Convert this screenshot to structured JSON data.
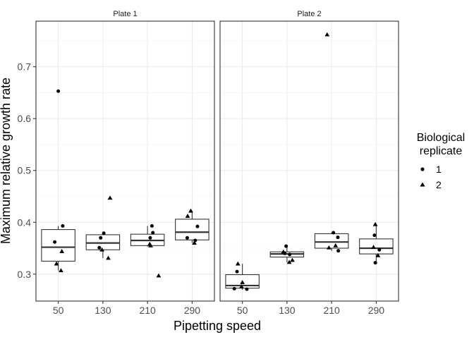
{
  "chart_data": {
    "type": "boxplot",
    "ylabel": "Maximum relative growth rate",
    "xlabel": "Pipetting speed",
    "categories": [
      "50",
      "130",
      "210",
      "290"
    ],
    "ylim": [
      0.248,
      0.788
    ],
    "yticks": [
      0.3,
      0.4,
      0.5,
      0.6,
      0.7
    ],
    "ytick_labels": [
      "0.3",
      "0.4",
      "0.5",
      "0.6",
      "0.7"
    ],
    "grid": true,
    "legend": {
      "title_lines": [
        "Biological",
        "replicate"
      ],
      "entries": [
        {
          "label": "1",
          "shape": "circle"
        },
        {
          "label": "2",
          "shape": "triangle"
        }
      ],
      "position": "right"
    },
    "panels": [
      {
        "name": "Plate 1",
        "boxes": [
          {
            "x": "50",
            "min": 0.307,
            "q1": 0.325,
            "median": 0.352,
            "q3": 0.386,
            "max": 0.393
          },
          {
            "x": "130",
            "min": 0.331,
            "q1": 0.347,
            "median": 0.36,
            "q3": 0.376,
            "max": 0.379
          },
          {
            "x": "210",
            "min": 0.353,
            "q1": 0.355,
            "median": 0.365,
            "q3": 0.377,
            "max": 0.393
          },
          {
            "x": "290",
            "min": 0.36,
            "q1": 0.366,
            "median": 0.381,
            "q3": 0.406,
            "max": 0.422
          }
        ],
        "points": [
          {
            "x": "50",
            "offset": 0.0,
            "y": 0.653,
            "replicate": "1"
          },
          {
            "x": "50",
            "offset": -0.08,
            "y": 0.362,
            "replicate": "1"
          },
          {
            "x": "50",
            "offset": 0.1,
            "y": 0.393,
            "replicate": "1"
          },
          {
            "x": "50",
            "offset": -0.04,
            "y": 0.32,
            "replicate": "2"
          },
          {
            "x": "50",
            "offset": 0.08,
            "y": 0.344,
            "replicate": "2"
          },
          {
            "x": "50",
            "offset": 0.06,
            "y": 0.307,
            "replicate": "2"
          },
          {
            "x": "130",
            "offset": -0.05,
            "y": 0.37,
            "replicate": "1"
          },
          {
            "x": "130",
            "offset": 0.02,
            "y": 0.379,
            "replicate": "1"
          },
          {
            "x": "130",
            "offset": -0.08,
            "y": 0.351,
            "replicate": "1"
          },
          {
            "x": "130",
            "offset": 0.16,
            "y": 0.447,
            "replicate": "2"
          },
          {
            "x": "130",
            "offset": 0.12,
            "y": 0.331,
            "replicate": "2"
          },
          {
            "x": "130",
            "offset": -0.02,
            "y": 0.347,
            "replicate": "2"
          },
          {
            "x": "210",
            "offset": 0.1,
            "y": 0.393,
            "replicate": "1"
          },
          {
            "x": "210",
            "offset": 0.12,
            "y": 0.38,
            "replicate": "1"
          },
          {
            "x": "210",
            "offset": 0.06,
            "y": 0.37,
            "replicate": "1"
          },
          {
            "x": "210",
            "offset": 0.07,
            "y": 0.355,
            "replicate": "2"
          },
          {
            "x": "210",
            "offset": 0.25,
            "y": 0.297,
            "replicate": "2"
          },
          {
            "x": "210",
            "offset": 0.05,
            "y": 0.358,
            "replicate": "2"
          },
          {
            "x": "290",
            "offset": -0.11,
            "y": 0.37,
            "replicate": "1"
          },
          {
            "x": "290",
            "offset": 0.12,
            "y": 0.392,
            "replicate": "1"
          },
          {
            "x": "290",
            "offset": 0.07,
            "y": 0.365,
            "replicate": "1"
          },
          {
            "x": "290",
            "offset": -0.03,
            "y": 0.422,
            "replicate": "2"
          },
          {
            "x": "290",
            "offset": -0.1,
            "y": 0.412,
            "replicate": "2"
          },
          {
            "x": "290",
            "offset": 0.05,
            "y": 0.36,
            "replicate": "2"
          }
        ]
      },
      {
        "name": "Plate 2",
        "boxes": [
          {
            "x": "50",
            "min": 0.27,
            "q1": 0.273,
            "median": 0.278,
            "q3": 0.299,
            "max": 0.32
          },
          {
            "x": "130",
            "min": 0.323,
            "q1": 0.333,
            "median": 0.339,
            "q3": 0.343,
            "max": 0.354
          },
          {
            "x": "210",
            "min": 0.345,
            "q1": 0.35,
            "median": 0.362,
            "q3": 0.378,
            "max": 0.38
          },
          {
            "x": "290",
            "min": 0.322,
            "q1": 0.339,
            "median": 0.35,
            "q3": 0.368,
            "max": 0.395
          }
        ],
        "points": [
          {
            "x": "50",
            "offset": -0.18,
            "y": 0.272,
            "replicate": "1"
          },
          {
            "x": "50",
            "offset": -0.12,
            "y": 0.305,
            "replicate": "1"
          },
          {
            "x": "50",
            "offset": 0.1,
            "y": 0.271,
            "replicate": "1"
          },
          {
            "x": "50",
            "offset": -0.1,
            "y": 0.32,
            "replicate": "2"
          },
          {
            "x": "50",
            "offset": 0.0,
            "y": 0.284,
            "replicate": "2"
          },
          {
            "x": "50",
            "offset": -0.02,
            "y": 0.276,
            "replicate": "2"
          },
          {
            "x": "130",
            "offset": -0.05,
            "y": 0.34,
            "replicate": "1"
          },
          {
            "x": "130",
            "offset": -0.02,
            "y": 0.354,
            "replicate": "1"
          },
          {
            "x": "130",
            "offset": 0.06,
            "y": 0.338,
            "replicate": "1"
          },
          {
            "x": "130",
            "offset": 0.05,
            "y": 0.323,
            "replicate": "2"
          },
          {
            "x": "130",
            "offset": 0.12,
            "y": 0.327,
            "replicate": "2"
          },
          {
            "x": "130",
            "offset": -0.08,
            "y": 0.343,
            "replicate": "2"
          },
          {
            "x": "210",
            "offset": 0.04,
            "y": 0.38,
            "replicate": "1"
          },
          {
            "x": "210",
            "offset": 0.14,
            "y": 0.371,
            "replicate": "1"
          },
          {
            "x": "210",
            "offset": 0.15,
            "y": 0.345,
            "replicate": "1"
          },
          {
            "x": "210",
            "offset": -0.1,
            "y": 0.762,
            "replicate": "2"
          },
          {
            "x": "210",
            "offset": 0.09,
            "y": 0.355,
            "replicate": "2"
          },
          {
            "x": "210",
            "offset": -0.06,
            "y": 0.351,
            "replicate": "2"
          },
          {
            "x": "290",
            "offset": -0.04,
            "y": 0.375,
            "replicate": "1"
          },
          {
            "x": "290",
            "offset": -0.02,
            "y": 0.322,
            "replicate": "1"
          },
          {
            "x": "290",
            "offset": 0.07,
            "y": 0.347,
            "replicate": "1"
          },
          {
            "x": "290",
            "offset": -0.02,
            "y": 0.396,
            "replicate": "2"
          },
          {
            "x": "290",
            "offset": 0.04,
            "y": 0.336,
            "replicate": "2"
          },
          {
            "x": "290",
            "offset": -0.06,
            "y": 0.352,
            "replicate": "2"
          }
        ]
      }
    ]
  }
}
